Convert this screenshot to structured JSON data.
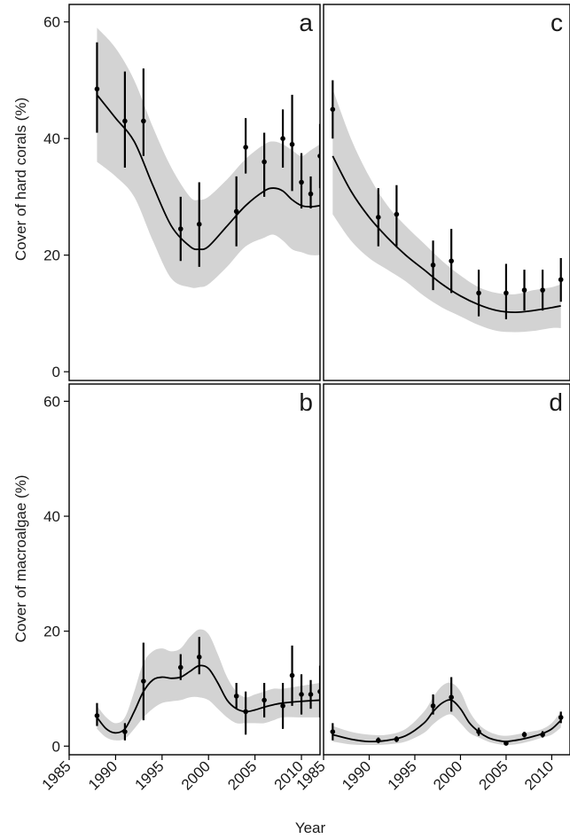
{
  "figure": {
    "xlabel": "Year",
    "ylabel_top": "Cover of hard corals (%)",
    "ylabel_bottom": "Cover of macroalgae (%)"
  },
  "chart_data": [
    {
      "panel": "a",
      "type": "scatter",
      "xlim": [
        1985,
        2012
      ],
      "ylim": [
        -1.5,
        63
      ],
      "yticks": [
        0,
        20,
        40,
        60
      ],
      "points": [
        {
          "x": 1988,
          "y": 48.5,
          "lo": 41,
          "hi": 56.5
        },
        {
          "x": 1991,
          "y": 43,
          "lo": 35,
          "hi": 51.5
        },
        {
          "x": 1993,
          "y": 43,
          "lo": 37,
          "hi": 52
        },
        {
          "x": 1997,
          "y": 24.5,
          "lo": 19,
          "hi": 30
        },
        {
          "x": 1999,
          "y": 25.3,
          "lo": 18,
          "hi": 32.5
        },
        {
          "x": 2003,
          "y": 27.5,
          "lo": 21.5,
          "hi": 33.5
        },
        {
          "x": 2004,
          "y": 38.5,
          "lo": 34,
          "hi": 43.5
        },
        {
          "x": 2006,
          "y": 36,
          "lo": 30,
          "hi": 41
        },
        {
          "x": 2008,
          "y": 40,
          "lo": 35,
          "hi": 45
        },
        {
          "x": 2009,
          "y": 39,
          "lo": 31,
          "hi": 47.5
        },
        {
          "x": 2010,
          "y": 32.5,
          "lo": 28,
          "hi": 37.5
        },
        {
          "x": 2011,
          "y": 30.5,
          "lo": 28,
          "hi": 33.5
        },
        {
          "x": 2012,
          "y": 37,
          "lo": 31.5,
          "hi": 42.5
        }
      ],
      "fit": [
        [
          1988,
          47.5
        ],
        [
          1990,
          43.5
        ],
        [
          1992,
          39.5
        ],
        [
          1994,
          32
        ],
        [
          1996,
          25
        ],
        [
          1998,
          21.5
        ],
        [
          1999,
          21
        ],
        [
          2000,
          21.5
        ],
        [
          2002,
          25
        ],
        [
          2004,
          28.5
        ],
        [
          2006,
          31
        ],
        [
          2007,
          31.5
        ],
        [
          2008,
          31
        ],
        [
          2009,
          29.5
        ],
        [
          2010,
          28.5
        ],
        [
          2011,
          28.3
        ],
        [
          2012,
          28.5
        ]
      ],
      "band_upper": [
        [
          1988,
          59
        ],
        [
          1990,
          55.5
        ],
        [
          1992,
          50
        ],
        [
          1994,
          42
        ],
        [
          1996,
          35
        ],
        [
          1998,
          30
        ],
        [
          1999,
          29.5
        ],
        [
          2000,
          30
        ],
        [
          2002,
          33
        ],
        [
          2004,
          36.5
        ],
        [
          2006,
          39
        ],
        [
          2007,
          39.5
        ],
        [
          2008,
          39
        ],
        [
          2009,
          38
        ],
        [
          2010,
          37
        ],
        [
          2011,
          38
        ],
        [
          2012,
          39
        ]
      ],
      "band_lower": [
        [
          1988,
          36
        ],
        [
          1990,
          33.5
        ],
        [
          1992,
          30
        ],
        [
          1994,
          22.5
        ],
        [
          1996,
          16
        ],
        [
          1998,
          14.5
        ],
        [
          1999,
          14.5
        ],
        [
          2000,
          15
        ],
        [
          2002,
          18
        ],
        [
          2004,
          21.5
        ],
        [
          2006,
          23
        ],
        [
          2007,
          23.5
        ],
        [
          2008,
          22.5
        ],
        [
          2009,
          21
        ],
        [
          2010,
          20.5
        ],
        [
          2011,
          20
        ],
        [
          2012,
          20
        ]
      ]
    },
    {
      "panel": "c",
      "type": "scatter",
      "xlim": [
        1985,
        2012
      ],
      "ylim": [
        -1.5,
        63
      ],
      "yticks": [
        0,
        20,
        40,
        60
      ],
      "points": [
        {
          "x": 1986,
          "y": 45,
          "lo": 40,
          "hi": 50
        },
        {
          "x": 1991,
          "y": 26.5,
          "lo": 21.5,
          "hi": 31.5
        },
        {
          "x": 1993,
          "y": 27,
          "lo": 21.5,
          "hi": 32
        },
        {
          "x": 1997,
          "y": 18.3,
          "lo": 14,
          "hi": 22.5
        },
        {
          "x": 1999,
          "y": 19,
          "lo": 13.5,
          "hi": 24.5
        },
        {
          "x": 2002,
          "y": 13.5,
          "lo": 9.5,
          "hi": 17.5
        },
        {
          "x": 2005,
          "y": 13.5,
          "lo": 9,
          "hi": 18.5
        },
        {
          "x": 2007,
          "y": 14,
          "lo": 10.5,
          "hi": 17.5
        },
        {
          "x": 2009,
          "y": 14,
          "lo": 10.5,
          "hi": 17.5
        },
        {
          "x": 2011,
          "y": 15.8,
          "lo": 12,
          "hi": 19.5
        }
      ],
      "fit": [
        [
          1986,
          37
        ],
        [
          1988,
          31
        ],
        [
          1990,
          26.5
        ],
        [
          1992,
          23
        ],
        [
          1994,
          20
        ],
        [
          1996,
          17.5
        ],
        [
          1998,
          15
        ],
        [
          2000,
          13
        ],
        [
          2002,
          11.5
        ],
        [
          2004,
          10.5
        ],
        [
          2006,
          10.2
        ],
        [
          2008,
          10.5
        ],
        [
          2010,
          11
        ],
        [
          2011,
          11.3
        ]
      ],
      "band_upper": [
        [
          1986,
          48.5
        ],
        [
          1988,
          40
        ],
        [
          1990,
          33.5
        ],
        [
          1992,
          28.5
        ],
        [
          1994,
          25
        ],
        [
          1996,
          22
        ],
        [
          1998,
          19
        ],
        [
          2000,
          16.5
        ],
        [
          2002,
          14.5
        ],
        [
          2004,
          13.5
        ],
        [
          2006,
          13.3
        ],
        [
          2008,
          14
        ],
        [
          2010,
          14.5
        ],
        [
          2011,
          15
        ]
      ],
      "band_lower": [
        [
          1986,
          27
        ],
        [
          1988,
          22.5
        ],
        [
          1990,
          19.5
        ],
        [
          1992,
          17.5
        ],
        [
          1994,
          15.5
        ],
        [
          1996,
          13
        ],
        [
          1998,
          11
        ],
        [
          2000,
          9.5
        ],
        [
          2002,
          8
        ],
        [
          2004,
          7
        ],
        [
          2006,
          6.8
        ],
        [
          2008,
          7
        ],
        [
          2010,
          7.5
        ],
        [
          2011,
          7.5
        ]
      ]
    },
    {
      "panel": "b",
      "type": "scatter",
      "xlim": [
        1985,
        2012
      ],
      "ylim": [
        -1.5,
        63
      ],
      "yticks": [
        0,
        20,
        40,
        60
      ],
      "points": [
        {
          "x": 1988,
          "y": 5.3,
          "lo": 3.5,
          "hi": 7.5
        },
        {
          "x": 1991,
          "y": 2.5,
          "lo": 1,
          "hi": 4
        },
        {
          "x": 1993,
          "y": 11.3,
          "lo": 4.5,
          "hi": 18
        },
        {
          "x": 1997,
          "y": 13.7,
          "lo": 11.5,
          "hi": 16
        },
        {
          "x": 1999,
          "y": 15.5,
          "lo": 12.5,
          "hi": 19
        },
        {
          "x": 2003,
          "y": 8.7,
          "lo": 6.5,
          "hi": 11
        },
        {
          "x": 2004,
          "y": 6,
          "lo": 2,
          "hi": 9.5
        },
        {
          "x": 2006,
          "y": 8,
          "lo": 5,
          "hi": 11
        },
        {
          "x": 2008,
          "y": 7,
          "lo": 3,
          "hi": 11
        },
        {
          "x": 2009,
          "y": 12.3,
          "lo": 7,
          "hi": 17.5
        },
        {
          "x": 2010,
          "y": 9,
          "lo": 5.5,
          "hi": 12.5
        },
        {
          "x": 2011,
          "y": 9,
          "lo": 6.5,
          "hi": 11.5
        },
        {
          "x": 2012,
          "y": 9.5,
          "lo": 5,
          "hi": 14
        }
      ],
      "fit": [
        [
          1988,
          5
        ],
        [
          1989,
          3
        ],
        [
          1990,
          2.3
        ],
        [
          1991,
          3
        ],
        [
          1992,
          6
        ],
        [
          1993,
          9.5
        ],
        [
          1994,
          11.5
        ],
        [
          1995,
          12
        ],
        [
          1996,
          11.8
        ],
        [
          1997,
          12
        ],
        [
          1998,
          13
        ],
        [
          1999,
          14
        ],
        [
          2000,
          13.5
        ],
        [
          2001,
          11
        ],
        [
          2002,
          8
        ],
        [
          2003,
          6.5
        ],
        [
          2004,
          6
        ],
        [
          2005,
          6.3
        ],
        [
          2006,
          6.8
        ],
        [
          2007,
          7.2
        ],
        [
          2008,
          7.5
        ],
        [
          2010,
          7.8
        ],
        [
          2012,
          8
        ]
      ],
      "band_upper": [
        [
          1988,
          7
        ],
        [
          1989,
          5
        ],
        [
          1990,
          4
        ],
        [
          1991,
          5
        ],
        [
          1992,
          9.5
        ],
        [
          1993,
          14.5
        ],
        [
          1994,
          16.5
        ],
        [
          1995,
          17
        ],
        [
          1996,
          16.5
        ],
        [
          1997,
          17
        ],
        [
          1998,
          19
        ],
        [
          1999,
          20.3
        ],
        [
          2000,
          19.5
        ],
        [
          2001,
          16
        ],
        [
          2002,
          12
        ],
        [
          2003,
          9.5
        ],
        [
          2004,
          8.5
        ],
        [
          2005,
          9
        ],
        [
          2006,
          9.5
        ],
        [
          2007,
          10
        ],
        [
          2008,
          10
        ],
        [
          2010,
          10.5
        ],
        [
          2012,
          11
        ]
      ],
      "band_lower": [
        [
          1988,
          3
        ],
        [
          1989,
          1.5
        ],
        [
          1990,
          1
        ],
        [
          1991,
          1.3
        ],
        [
          1992,
          3
        ],
        [
          1993,
          5
        ],
        [
          1994,
          6.5
        ],
        [
          1995,
          7.5
        ],
        [
          1996,
          7.8
        ],
        [
          1997,
          8
        ],
        [
          1998,
          8.5
        ],
        [
          1999,
          8.5
        ],
        [
          2000,
          8
        ],
        [
          2001,
          6.5
        ],
        [
          2002,
          5
        ],
        [
          2003,
          4
        ],
        [
          2004,
          4
        ],
        [
          2005,
          4
        ],
        [
          2006,
          4
        ],
        [
          2007,
          4.5
        ],
        [
          2008,
          5
        ],
        [
          2010,
          5
        ],
        [
          2012,
          5
        ]
      ]
    },
    {
      "panel": "d",
      "type": "scatter",
      "xlim": [
        1985,
        2012
      ],
      "ylim": [
        -1.5,
        63
      ],
      "yticks": [
        0,
        20,
        40,
        60
      ],
      "xticks": [
        1985,
        1990,
        1995,
        2000,
        2005,
        2010
      ],
      "points": [
        {
          "x": 1986,
          "y": 2.5,
          "lo": 1,
          "hi": 4
        },
        {
          "x": 1991,
          "y": 1,
          "lo": 0.5,
          "hi": 1.5
        },
        {
          "x": 1993,
          "y": 1.2,
          "lo": 0.7,
          "hi": 1.7
        },
        {
          "x": 1997,
          "y": 7,
          "lo": 5.5,
          "hi": 9
        },
        {
          "x": 1999,
          "y": 8.5,
          "lo": 6,
          "hi": 12
        },
        {
          "x": 2002,
          "y": 2.5,
          "lo": 1.8,
          "hi": 3.2
        },
        {
          "x": 2005,
          "y": 0.5,
          "lo": 0.2,
          "hi": 0.8
        },
        {
          "x": 2007,
          "y": 2,
          "lo": 1.5,
          "hi": 2.5
        },
        {
          "x": 2009,
          "y": 2,
          "lo": 1.5,
          "hi": 2.6
        },
        {
          "x": 2011,
          "y": 5,
          "lo": 4,
          "hi": 6
        }
      ],
      "fit": [
        [
          1986,
          2
        ],
        [
          1988,
          1.2
        ],
        [
          1990,
          0.8
        ],
        [
          1992,
          1
        ],
        [
          1994,
          1.8
        ],
        [
          1996,
          4
        ],
        [
          1997,
          6
        ],
        [
          1998,
          7.5
        ],
        [
          1999,
          8
        ],
        [
          2000,
          6.5
        ],
        [
          2001,
          4
        ],
        [
          2002,
          2.5
        ],
        [
          2003,
          1.5
        ],
        [
          2004,
          1
        ],
        [
          2005,
          0.8
        ],
        [
          2006,
          1
        ],
        [
          2007,
          1.3
        ],
        [
          2008,
          1.7
        ],
        [
          2009,
          2.2
        ],
        [
          2010,
          3
        ],
        [
          2011,
          4.5
        ]
      ],
      "band_upper": [
        [
          1986,
          3.5
        ],
        [
          1988,
          2.5
        ],
        [
          1990,
          2
        ],
        [
          1992,
          2
        ],
        [
          1994,
          3
        ],
        [
          1996,
          6
        ],
        [
          1997,
          8.5
        ],
        [
          1998,
          10.5
        ],
        [
          1999,
          11
        ],
        [
          2000,
          9.5
        ],
        [
          2001,
          6
        ],
        [
          2002,
          3.8
        ],
        [
          2003,
          2.6
        ],
        [
          2004,
          2
        ],
        [
          2005,
          1.8
        ],
        [
          2006,
          2
        ],
        [
          2007,
          2.3
        ],
        [
          2008,
          2.6
        ],
        [
          2009,
          3
        ],
        [
          2010,
          4
        ],
        [
          2011,
          6
        ]
      ],
      "band_lower": [
        [
          1986,
          0.8
        ],
        [
          1988,
          0.3
        ],
        [
          1990,
          0.2
        ],
        [
          1992,
          0.3
        ],
        [
          1994,
          0.8
        ],
        [
          1996,
          2.3
        ],
        [
          1997,
          3.8
        ],
        [
          1998,
          5
        ],
        [
          1999,
          5.5
        ],
        [
          2000,
          4
        ],
        [
          2001,
          2.3
        ],
        [
          2002,
          1.5
        ],
        [
          2003,
          0.8
        ],
        [
          2004,
          0.4
        ],
        [
          2005,
          0.2
        ],
        [
          2006,
          0.3
        ],
        [
          2007,
          0.6
        ],
        [
          2008,
          1
        ],
        [
          2009,
          1.5
        ],
        [
          2010,
          2
        ],
        [
          2011,
          3.2
        ]
      ]
    }
  ]
}
